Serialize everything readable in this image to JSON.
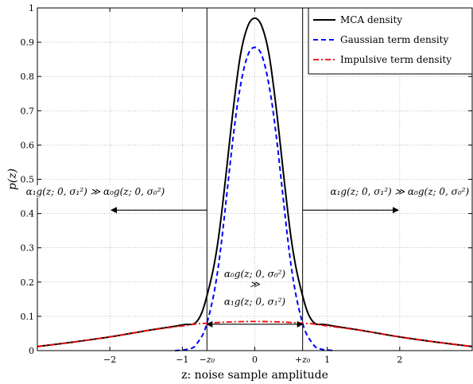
{
  "chart_data": {
    "type": "line",
    "xlabel": "z: noise sample amplitude",
    "ylabel": "p(z)",
    "xlim": [
      -3,
      3
    ],
    "ylim": [
      0,
      1
    ],
    "grid": true,
    "legend_position": "top-right",
    "x_ticks": [
      -2,
      -1,
      0,
      1,
      2
    ],
    "x_tick_labels": [
      "−2",
      "−1",
      "0",
      "1",
      "2"
    ],
    "y_ticks": [
      0,
      0.1,
      0.2,
      0.3,
      0.4,
      0.5,
      0.6,
      0.7,
      0.8,
      0.9,
      1
    ],
    "y_tick_labels": [
      "0",
      "0.1",
      "0.2",
      "0.3",
      "0.4",
      "0.5",
      "0.6",
      "0.7",
      "0.8",
      "0.9",
      "1"
    ],
    "extra_x_labels": [
      {
        "x": -0.66,
        "text": "−z₀"
      },
      {
        "x": 0.66,
        "text": "+z₀"
      }
    ],
    "vertical_lines": [
      -0.66,
      0.66
    ],
    "series": [
      {
        "name": "MCA density",
        "color": "#000000",
        "style": "solid",
        "x": [
          -3,
          -2.5,
          -2,
          -1.5,
          -1,
          -0.8,
          -0.66,
          -0.5,
          -0.3,
          -0.2,
          -0.1,
          0,
          0.1,
          0.2,
          0.3,
          0.5,
          0.66,
          0.8,
          1,
          1.5,
          2,
          2.5,
          3
        ],
        "y": [
          0.012,
          0.025,
          0.04,
          0.058,
          0.075,
          0.085,
          0.16,
          0.33,
          0.7,
          0.86,
          0.945,
          0.97,
          0.945,
          0.86,
          0.7,
          0.33,
          0.16,
          0.085,
          0.075,
          0.058,
          0.04,
          0.025,
          0.012
        ]
      },
      {
        "name": "Gaussian term density",
        "color": "#0000ff",
        "style": "dashed",
        "x": [
          -1.1,
          -0.9,
          -0.8,
          -0.66,
          -0.5,
          -0.3,
          -0.2,
          -0.1,
          0,
          0.1,
          0.2,
          0.3,
          0.5,
          0.66,
          0.8,
          0.9,
          1.1
        ],
        "y": [
          0,
          0.005,
          0.02,
          0.08,
          0.25,
          0.62,
          0.77,
          0.86,
          0.885,
          0.86,
          0.77,
          0.62,
          0.25,
          0.08,
          0.02,
          0.005,
          0
        ]
      },
      {
        "name": "Impulsive term density",
        "color": "#ff0000",
        "style": "dashdot",
        "x": [
          -3,
          -2.5,
          -2,
          -1.5,
          -1,
          -0.8,
          -0.66,
          -0.5,
          -0.3,
          0,
          0.3,
          0.5,
          0.66,
          0.8,
          1,
          1.5,
          2,
          2.5,
          3
        ],
        "y": [
          0.012,
          0.025,
          0.04,
          0.058,
          0.072,
          0.078,
          0.08,
          0.082,
          0.084,
          0.085,
          0.084,
          0.082,
          0.08,
          0.078,
          0.072,
          0.058,
          0.04,
          0.025,
          0.012
        ]
      }
    ],
    "annotations": [
      {
        "name": "left-region-label",
        "text": "α₁g(z; 0, σ₁²) ≫ α₀g(z; 0, σ₀²)",
        "x": -2.2,
        "y": 0.455
      },
      {
        "name": "right-region-label",
        "text": "α₁g(z; 0, σ₁²) ≫ α₀g(z; 0, σ₀²)",
        "x": 2.0,
        "y": 0.455
      },
      {
        "name": "center-label-top",
        "text": "α₀g(z; 0, σ₀²)",
        "x": 0,
        "y": 0.215
      },
      {
        "name": "center-label-mid",
        "text": "≫",
        "x": 0,
        "y": 0.185
      },
      {
        "name": "center-label-bottom",
        "text": "α₁g(z; 0, σ₁²)",
        "x": 0,
        "y": 0.133
      }
    ],
    "arrows": [
      {
        "name": "left-arrow",
        "from": [
          -0.66,
          0.41
        ],
        "to": [
          -1.98,
          0.41
        ]
      },
      {
        "name": "right-arrow",
        "from": [
          0.66,
          0.41
        ],
        "to": [
          1.98,
          0.41
        ]
      },
      {
        "name": "center-double-arrow",
        "from": [
          -0.66,
          0.077
        ],
        "to": [
          0.66,
          0.077
        ]
      }
    ]
  }
}
